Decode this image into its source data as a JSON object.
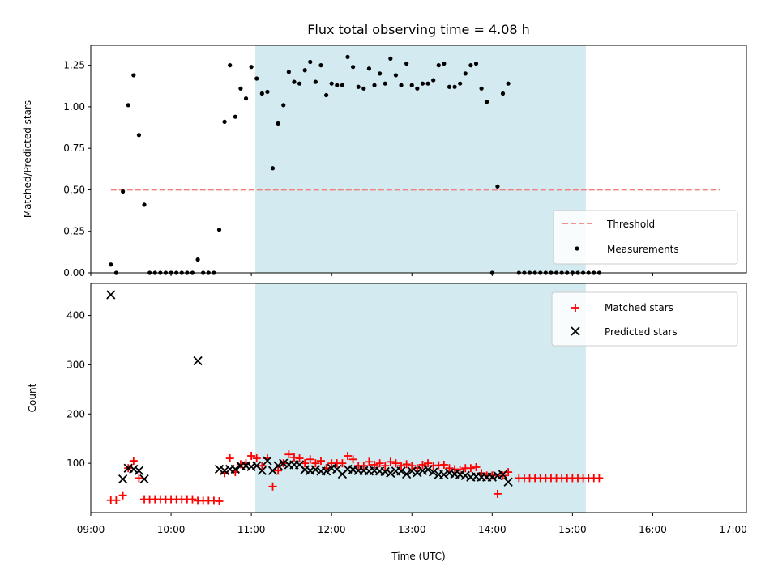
{
  "chart_data": [
    {
      "type": "scatter",
      "title": "Flux total observing time = 4.08 h",
      "ylabel": "Matched/Predicted stars",
      "xlim": [
        "09:00",
        "17:10"
      ],
      "ylim": [
        0,
        1.37
      ],
      "yticks": [
        0.0,
        0.25,
        0.5,
        0.75,
        1.0,
        1.25
      ],
      "ytick_labels": [
        "0.00",
        "0.25",
        "0.50",
        "0.75",
        "1.00",
        "1.25"
      ],
      "observing_window": [
        "11:03",
        "15:10"
      ],
      "window_color": "#d3eaf0",
      "legend_position": "lower right",
      "threshold": {
        "name": "Threshold",
        "y": 0.5,
        "x": [
          "09:15",
          "16:50"
        ],
        "color": "#f08080",
        "style": "dashed"
      },
      "series": [
        {
          "name": "Measurements",
          "color": "#000000",
          "marker": "dot",
          "points": [
            [
              "09:15",
              0.05
            ],
            [
              "09:19",
              0.0
            ],
            [
              "09:24",
              0.49
            ],
            [
              "09:28",
              1.01
            ],
            [
              "09:32",
              1.19
            ],
            [
              "09:36",
              0.83
            ],
            [
              "09:40",
              0.41
            ],
            [
              "09:44",
              0.0
            ],
            [
              "09:48",
              0.0
            ],
            [
              "09:52",
              0.0
            ],
            [
              "09:56",
              0.0
            ],
            [
              "10:00",
              0.0
            ],
            [
              "10:04",
              0.0
            ],
            [
              "10:08",
              0.0
            ],
            [
              "10:12",
              0.0
            ],
            [
              "10:16",
              0.0
            ],
            [
              "10:20",
              0.08
            ],
            [
              "10:24",
              0.0
            ],
            [
              "10:28",
              0.0
            ],
            [
              "10:32",
              0.0
            ],
            [
              "10:36",
              0.26
            ],
            [
              "10:40",
              0.91
            ],
            [
              "10:44",
              1.25
            ],
            [
              "10:48",
              0.94
            ],
            [
              "10:52",
              1.11
            ],
            [
              "10:56",
              1.05
            ],
            [
              "11:00",
              1.24
            ],
            [
              "11:04",
              1.17
            ],
            [
              "11:08",
              1.08
            ],
            [
              "11:12",
              1.09
            ],
            [
              "11:16",
              0.63
            ],
            [
              "11:20",
              0.9
            ],
            [
              "11:24",
              1.01
            ],
            [
              "11:28",
              1.21
            ],
            [
              "11:32",
              1.15
            ],
            [
              "11:36",
              1.14
            ],
            [
              "11:40",
              1.22
            ],
            [
              "11:44",
              1.27
            ],
            [
              "11:48",
              1.15
            ],
            [
              "11:52",
              1.25
            ],
            [
              "11:56",
              1.07
            ],
            [
              "12:00",
              1.14
            ],
            [
              "12:04",
              1.13
            ],
            [
              "12:08",
              1.13
            ],
            [
              "12:12",
              1.3
            ],
            [
              "12:16",
              1.24
            ],
            [
              "12:20",
              1.12
            ],
            [
              "12:24",
              1.11
            ],
            [
              "12:28",
              1.23
            ],
            [
              "12:32",
              1.13
            ],
            [
              "12:36",
              1.2
            ],
            [
              "12:40",
              1.14
            ],
            [
              "12:44",
              1.29
            ],
            [
              "12:48",
              1.19
            ],
            [
              "12:52",
              1.13
            ],
            [
              "12:56",
              1.26
            ],
            [
              "13:00",
              1.13
            ],
            [
              "13:04",
              1.11
            ],
            [
              "13:08",
              1.14
            ],
            [
              "13:12",
              1.14
            ],
            [
              "13:16",
              1.16
            ],
            [
              "13:20",
              1.25
            ],
            [
              "13:24",
              1.26
            ],
            [
              "13:28",
              1.12
            ],
            [
              "13:32",
              1.12
            ],
            [
              "13:36",
              1.14
            ],
            [
              "13:40",
              1.2
            ],
            [
              "13:44",
              1.25
            ],
            [
              "13:48",
              1.26
            ],
            [
              "13:52",
              1.11
            ],
            [
              "13:56",
              1.03
            ],
            [
              "14:00",
              0.0
            ],
            [
              "14:04",
              0.52
            ],
            [
              "14:08",
              1.08
            ],
            [
              "14:12",
              1.14
            ],
            [
              "14:20",
              0.0
            ],
            [
              "14:24",
              0.0
            ],
            [
              "14:28",
              0.0
            ],
            [
              "14:32",
              0.0
            ],
            [
              "14:36",
              0.0
            ],
            [
              "14:40",
              0.0
            ],
            [
              "14:44",
              0.0
            ],
            [
              "14:48",
              0.0
            ],
            [
              "14:52",
              0.0
            ],
            [
              "14:56",
              0.0
            ],
            [
              "15:00",
              0.0
            ],
            [
              "15:04",
              0.0
            ],
            [
              "15:08",
              0.0
            ],
            [
              "15:12",
              0.0
            ],
            [
              "15:16",
              0.0
            ],
            [
              "15:20",
              0.0
            ]
          ]
        }
      ]
    },
    {
      "type": "scatter",
      "xlabel": "Time (UTC)",
      "ylabel": "Count",
      "xlim": [
        "09:00",
        "17:10"
      ],
      "ylim": [
        0,
        465
      ],
      "yticks": [
        100,
        200,
        300,
        400
      ],
      "ytick_labels": [
        "100",
        "200",
        "300",
        "400"
      ],
      "xticks": [
        "09:00",
        "10:00",
        "11:00",
        "12:00",
        "13:00",
        "14:00",
        "15:00",
        "16:00",
        "17:00"
      ],
      "observing_window": [
        "11:03",
        "15:10"
      ],
      "window_color": "#d3eaf0",
      "legend_position": "upper right",
      "series": [
        {
          "name": "Matched stars",
          "color": "#ff0000",
          "marker": "plus",
          "points": [
            [
              "09:15",
              25
            ],
            [
              "09:19",
              25
            ],
            [
              "09:24",
              35
            ],
            [
              "09:28",
              90
            ],
            [
              "09:32",
              105
            ],
            [
              "09:36",
              70
            ],
            [
              "09:40",
              27
            ],
            [
              "09:44",
              27
            ],
            [
              "09:48",
              27
            ],
            [
              "09:52",
              27
            ],
            [
              "09:56",
              27
            ],
            [
              "10:00",
              27
            ],
            [
              "10:04",
              27
            ],
            [
              "10:08",
              27
            ],
            [
              "10:12",
              27
            ],
            [
              "10:16",
              27
            ],
            [
              "10:20",
              24
            ],
            [
              "10:24",
              24
            ],
            [
              "10:28",
              24
            ],
            [
              "10:32",
              24
            ],
            [
              "10:36",
              23
            ],
            [
              "10:40",
              80
            ],
            [
              "10:44",
              110
            ],
            [
              "10:48",
              82
            ],
            [
              "10:52",
              98
            ],
            [
              "10:56",
              100
            ],
            [
              "11:00",
              115
            ],
            [
              "11:04",
              110
            ],
            [
              "11:08",
              95
            ],
            [
              "11:12",
              110
            ],
            [
              "11:16",
              53
            ],
            [
              "11:20",
              85
            ],
            [
              "11:24",
              100
            ],
            [
              "11:28",
              118
            ],
            [
              "11:32",
              112
            ],
            [
              "11:36",
              110
            ],
            [
              "11:40",
              100
            ],
            [
              "11:44",
              108
            ],
            [
              "11:48",
              100
            ],
            [
              "11:52",
              105
            ],
            [
              "11:56",
              90
            ],
            [
              "12:00",
              100
            ],
            [
              "12:04",
              100
            ],
            [
              "12:08",
              100
            ],
            [
              "12:12",
              115
            ],
            [
              "12:16",
              108
            ],
            [
              "12:20",
              95
            ],
            [
              "12:24",
              95
            ],
            [
              "12:28",
              103
            ],
            [
              "12:32",
              97
            ],
            [
              "12:36",
              100
            ],
            [
              "12:40",
              95
            ],
            [
              "12:44",
              103
            ],
            [
              "12:48",
              100
            ],
            [
              "12:52",
              95
            ],
            [
              "12:56",
              98
            ],
            [
              "13:00",
              95
            ],
            [
              "13:04",
              90
            ],
            [
              "13:08",
              97
            ],
            [
              "13:12",
              100
            ],
            [
              "13:16",
              95
            ],
            [
              "13:20",
              96
            ],
            [
              "13:24",
              97
            ],
            [
              "13:28",
              90
            ],
            [
              "13:32",
              88
            ],
            [
              "13:36",
              87
            ],
            [
              "13:40",
              90
            ],
            [
              "13:44",
              90
            ],
            [
              "13:48",
              92
            ],
            [
              "13:52",
              80
            ],
            [
              "13:56",
              75
            ],
            [
              "14:00",
              75
            ],
            [
              "14:04",
              38
            ],
            [
              "14:08",
              75
            ],
            [
              "14:12",
              82
            ],
            [
              "14:20",
              70
            ],
            [
              "14:24",
              70
            ],
            [
              "14:28",
              70
            ],
            [
              "14:32",
              70
            ],
            [
              "14:36",
              70
            ],
            [
              "14:40",
              70
            ],
            [
              "14:44",
              70
            ],
            [
              "14:48",
              70
            ],
            [
              "14:52",
              70
            ],
            [
              "14:56",
              70
            ],
            [
              "15:00",
              70
            ],
            [
              "15:04",
              70
            ],
            [
              "15:08",
              70
            ],
            [
              "15:12",
              70
            ],
            [
              "15:16",
              70
            ],
            [
              "15:20",
              70
            ]
          ]
        },
        {
          "name": "Predicted stars",
          "color": "#000000",
          "marker": "x",
          "points": [
            [
              "09:15",
              442
            ],
            [
              "09:24",
              68
            ],
            [
              "09:28",
              90
            ],
            [
              "09:32",
              88
            ],
            [
              "09:36",
              85
            ],
            [
              "09:40",
              68
            ],
            [
              "10:20",
              308
            ],
            [
              "10:36",
              88
            ],
            [
              "10:40",
              85
            ],
            [
              "10:44",
              88
            ],
            [
              "10:48",
              88
            ],
            [
              "10:52",
              95
            ],
            [
              "10:56",
              95
            ],
            [
              "11:00",
              93
            ],
            [
              "11:04",
              95
            ],
            [
              "11:08",
              85
            ],
            [
              "11:12",
              105
            ],
            [
              "11:16",
              85
            ],
            [
              "11:20",
              95
            ],
            [
              "11:24",
              100
            ],
            [
              "11:28",
              97
            ],
            [
              "11:32",
              97
            ],
            [
              "11:36",
              97
            ],
            [
              "11:40",
              87
            ],
            [
              "11:44",
              85
            ],
            [
              "11:48",
              87
            ],
            [
              "11:52",
              84
            ],
            [
              "11:56",
              84
            ],
            [
              "12:00",
              90
            ],
            [
              "12:04",
              88
            ],
            [
              "12:08",
              78
            ],
            [
              "12:12",
              88
            ],
            [
              "12:16",
              87
            ],
            [
              "12:20",
              85
            ],
            [
              "12:24",
              85
            ],
            [
              "12:28",
              84
            ],
            [
              "12:32",
              85
            ],
            [
              "12:36",
              84
            ],
            [
              "12:40",
              83
            ],
            [
              "12:44",
              80
            ],
            [
              "12:48",
              84
            ],
            [
              "12:52",
              84
            ],
            [
              "12:56",
              78
            ],
            [
              "13:00",
              84
            ],
            [
              "13:04",
              81
            ],
            [
              "13:08",
              85
            ],
            [
              "13:12",
              87
            ],
            [
              "13:16",
              82
            ],
            [
              "13:20",
              77
            ],
            [
              "13:24",
              77
            ],
            [
              "13:28",
              80
            ],
            [
              "13:32",
              78
            ],
            [
              "13:36",
              77
            ],
            [
              "13:40",
              75
            ],
            [
              "13:44",
              72
            ],
            [
              "13:48",
              73
            ],
            [
              "13:52",
              72
            ],
            [
              "13:56",
              72
            ],
            [
              "14:00",
              72
            ],
            [
              "14:04",
              75
            ],
            [
              "14:08",
              77
            ],
            [
              "14:12",
              62
            ]
          ]
        }
      ]
    }
  ]
}
